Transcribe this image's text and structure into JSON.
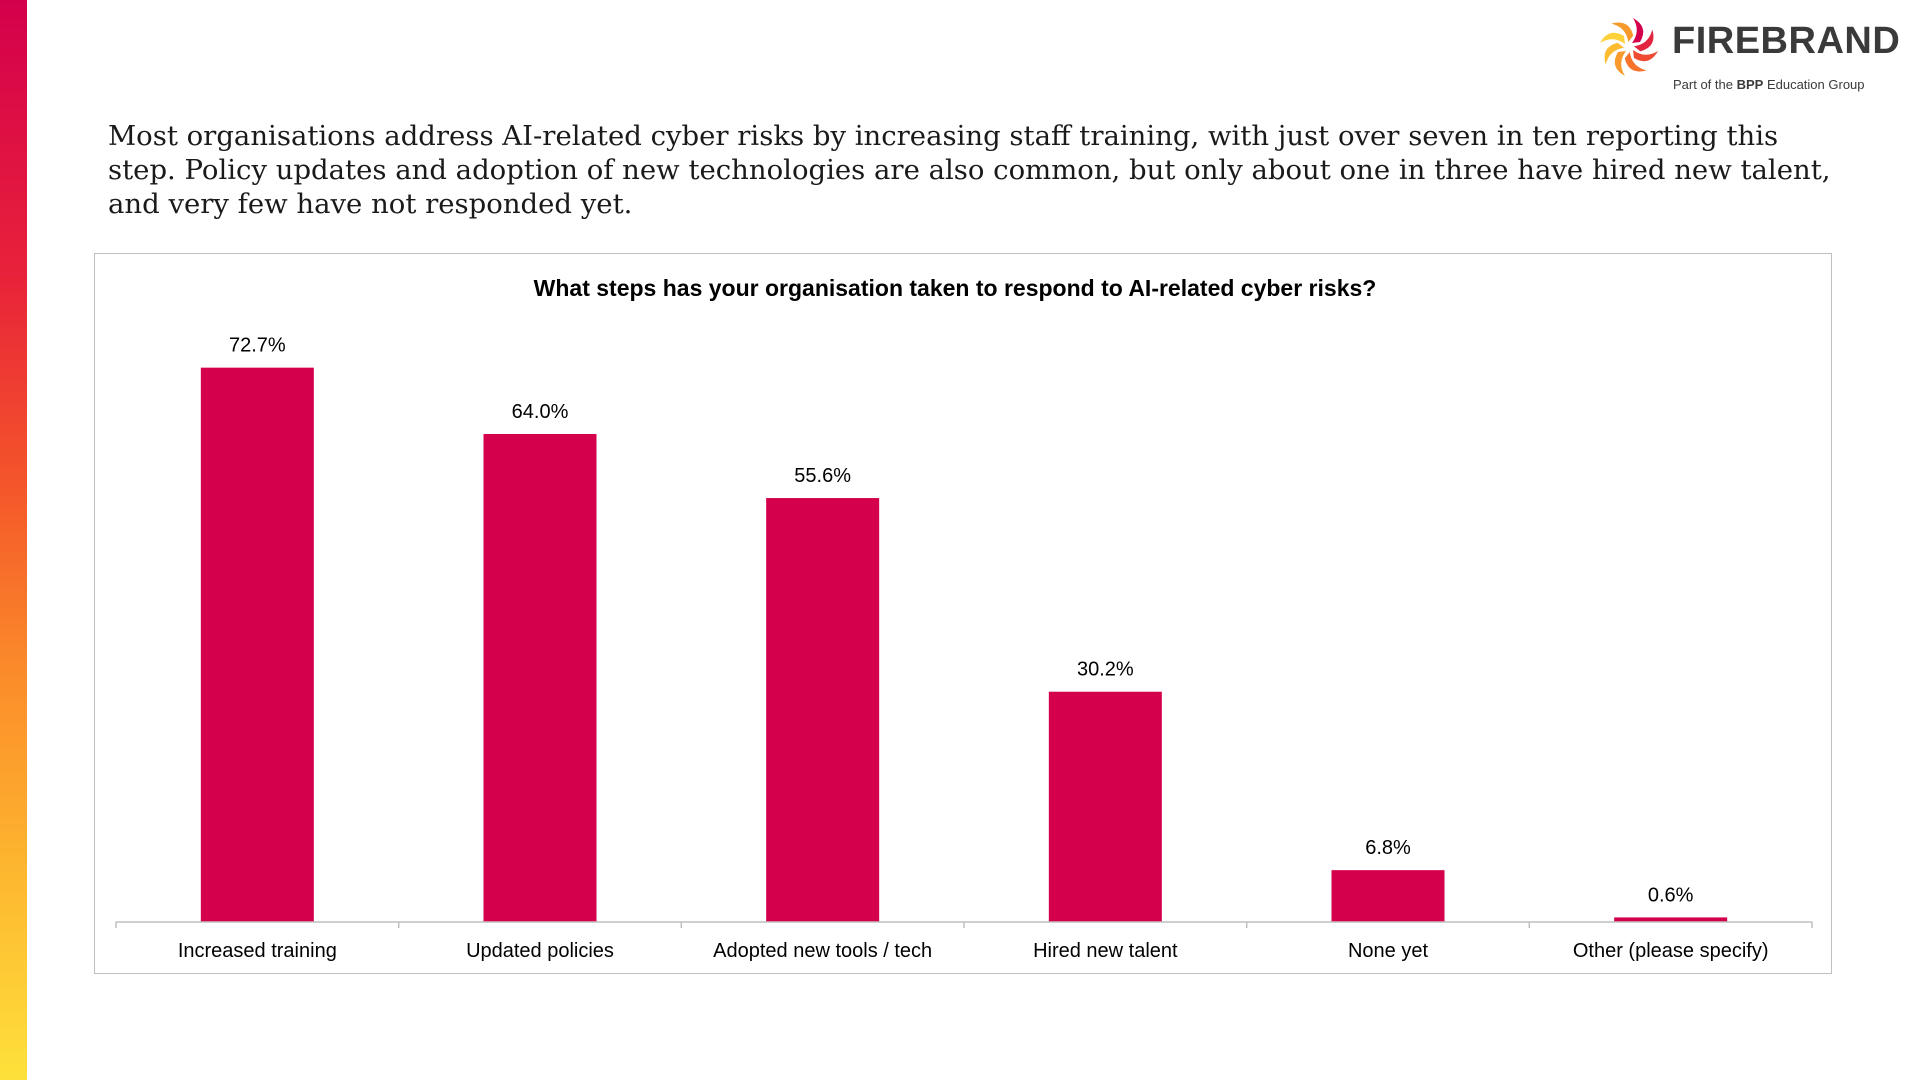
{
  "brand": {
    "name": "FIREBRAND",
    "tagline_prefix": "Part of the ",
    "tagline_bold": "BPP",
    "tagline_suffix": " Education Group",
    "accent_color": "#d4004c",
    "logo_icon": "firebrand-spiral-icon"
  },
  "intro_text": "Most organisations address AI-related cyber risks by increasing staff training, with just over seven in ten reporting this step. Policy updates and adoption of new technologies are also common, but only about one in three have hired new talent, and very few have not responded yet.",
  "chart_data": {
    "type": "bar",
    "title": "What steps has your organisation taken to respond to AI-related cyber risks?",
    "categories": [
      "Increased training",
      "Updated policies",
      "Adopted new tools / tech",
      "Hired new talent",
      "None yet",
      "Other (please specify)"
    ],
    "values": [
      72.7,
      64.0,
      55.6,
      30.2,
      6.8,
      0.6
    ],
    "value_labels": [
      "72.7%",
      "64.0%",
      "55.6%",
      "30.2%",
      "6.8%",
      "0.6%"
    ],
    "unit": "%",
    "ylim": [
      0,
      80
    ],
    "bar_color": "#d4004c",
    "grid": false,
    "legend": "none"
  }
}
